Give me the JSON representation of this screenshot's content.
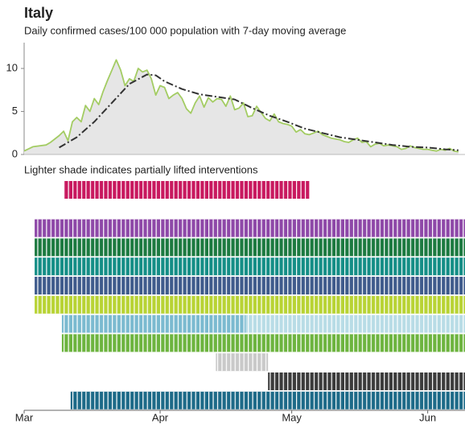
{
  "chart_data": {
    "type": "line",
    "title": "Italy",
    "subtitle": "Daily confirmed cases/100 000 population with 7-day moving average",
    "annotation": "Lighter shade indicates partially lifted interventions",
    "xlim": [
      0,
      100.5
    ],
    "xticks": [
      {
        "value": 0,
        "label": "Mar"
      },
      {
        "value": 31,
        "label": "Apr"
      },
      {
        "value": 61,
        "label": "May"
      },
      {
        "value": 92,
        "label": "Jun"
      }
    ],
    "ylim": [
      0,
      13
    ],
    "yticks": [
      0,
      5,
      10
    ],
    "area_color": "#e6e6e6",
    "series": [
      {
        "color": "#a3cc63",
        "fill": true,
        "x": [
          0,
          2,
          5,
          6,
          8,
          9,
          10,
          11,
          12,
          13,
          14,
          15,
          16,
          17,
          18,
          19,
          20,
          21,
          22,
          23,
          24,
          25,
          26,
          27,
          28,
          29,
          30,
          31,
          32,
          33,
          34,
          35,
          36,
          37,
          38,
          39,
          40,
          41,
          42,
          43,
          44,
          45,
          46,
          47,
          48,
          49,
          50,
          51,
          52,
          53,
          54,
          55,
          56,
          57,
          58,
          59,
          60,
          61,
          62,
          63,
          64,
          65,
          66,
          67,
          68,
          69,
          70,
          71,
          72,
          73,
          74,
          75,
          76,
          77,
          78,
          79,
          80,
          81,
          82,
          83,
          84,
          85,
          86,
          87,
          88,
          89,
          90,
          91,
          92,
          93,
          94,
          95,
          96,
          97,
          98,
          99
        ],
        "values": [
          0.4,
          0.9,
          1.1,
          1.4,
          2.2,
          2.7,
          1.6,
          3.8,
          4.3,
          3.8,
          5.7,
          5.0,
          6.5,
          5.8,
          7.3,
          8.6,
          9.8,
          11.0,
          9.8,
          8.0,
          8.8,
          8.5,
          10.0,
          9.6,
          9.8,
          8.8,
          6.9,
          8.0,
          7.8,
          6.5,
          6.9,
          7.2,
          6.5,
          5.3,
          4.8,
          6.0,
          6.8,
          5.5,
          6.6,
          6.1,
          6.5,
          6.4,
          5.6,
          6.8,
          5.2,
          5.4,
          6.0,
          4.4,
          4.5,
          5.6,
          4.9,
          4.2,
          3.9,
          4.7,
          3.8,
          3.6,
          3.5,
          3.3,
          2.6,
          2.9,
          2.4,
          2.3,
          2.5,
          2.7,
          2.3,
          2.1,
          1.9,
          1.8,
          1.7,
          1.5,
          1.4,
          1.7,
          1.9,
          1.4,
          1.5,
          0.9,
          1.2,
          1.3,
          1.0,
          1.1,
          1.0,
          0.9,
          0.6,
          0.7,
          1.0,
          0.8,
          0.7,
          0.6,
          0.6,
          0.5,
          0.4,
          0.6,
          0.5,
          0.7,
          0.4,
          0.3
        ]
      },
      {
        "color": "#333333",
        "dash": true,
        "x": [
          8,
          12,
          16,
          20,
          24,
          28,
          30,
          32,
          36,
          40,
          44,
          48,
          52,
          56,
          60,
          64,
          68,
          72,
          76,
          80,
          84,
          88,
          92,
          96,
          99
        ],
        "values": [
          0.8,
          2.0,
          3.8,
          6.0,
          8.2,
          9.3,
          9.2,
          8.5,
          7.6,
          7.0,
          6.7,
          6.4,
          5.4,
          4.5,
          3.8,
          3.0,
          2.5,
          2.0,
          1.7,
          1.4,
          1.1,
          0.9,
          0.8,
          0.6,
          0.5
        ]
      }
    ],
    "interventions": [
      {
        "segments": [
          {
            "start": 9,
            "end": 65,
            "color": "#c8195f"
          }
        ]
      },
      {
        "segments": []
      },
      {
        "segments": [
          {
            "start": 2.4,
            "end": 100.5,
            "color": "#8e48a8"
          }
        ]
      },
      {
        "segments": [
          {
            "start": 2.4,
            "end": 100.5,
            "color": "#1c7a40"
          }
        ]
      },
      {
        "segments": [
          {
            "start": 2.4,
            "end": 100.5,
            "color": "#148e86"
          }
        ]
      },
      {
        "segments": [
          {
            "start": 2.4,
            "end": 100.5,
            "color": "#3f5b8c"
          }
        ]
      },
      {
        "segments": [
          {
            "start": 2.4,
            "end": 100.5,
            "color": "#b8d334"
          }
        ]
      },
      {
        "segments": [
          {
            "start": 8.6,
            "end": 50.5,
            "color": "#7bbad0"
          },
          {
            "start": 50.5,
            "end": 100.5,
            "color": "#b8dce6"
          }
        ]
      },
      {
        "segments": [
          {
            "start": 8.6,
            "end": 100.5,
            "color": "#6db43f"
          }
        ]
      },
      {
        "segments": [
          {
            "start": 43.7,
            "end": 55.6,
            "color": "#c9c9c9"
          }
        ]
      },
      {
        "segments": [
          {
            "start": 55.6,
            "end": 100.5,
            "color": "#3b3b3b"
          }
        ]
      },
      {
        "segments": [
          {
            "start": 10.6,
            "end": 100.5,
            "color": "#1d6a88"
          }
        ]
      }
    ]
  }
}
